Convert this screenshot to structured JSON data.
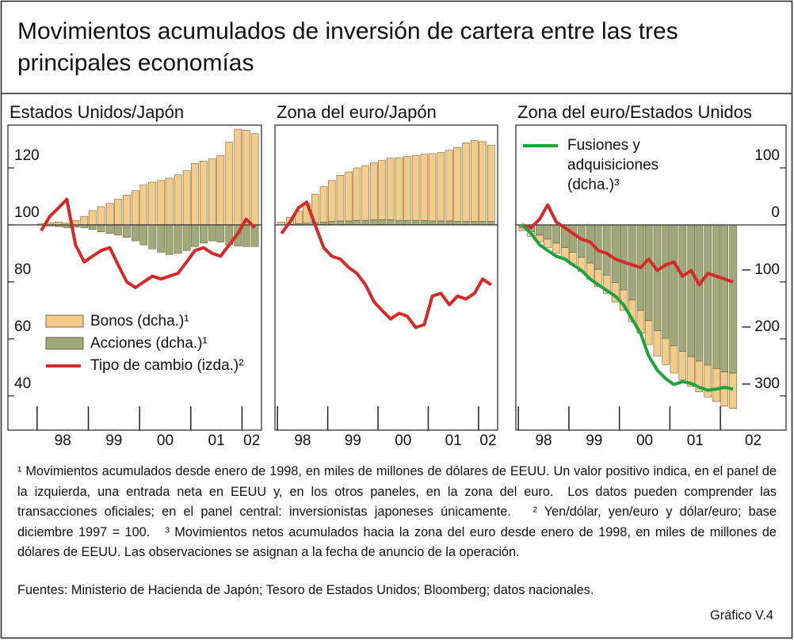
{
  "title": "Movimientos acumulados de inversión de cartera entre las tres principales economías",
  "chart_data": [
    {
      "type": "combo",
      "title": "Estados Unidos/Japón",
      "x": [
        1998.08,
        1998.25,
        1998.42,
        1998.58,
        1998.75,
        1998.92,
        1999.08,
        1999.25,
        1999.42,
        1999.58,
        1999.75,
        1999.92,
        2000.08,
        2000.25,
        2000.42,
        2000.58,
        2000.75,
        2000.92,
        2001.08,
        2001.25,
        2001.42,
        2001.58,
        2001.75,
        2001.92,
        2002.08,
        2002.25
      ],
      "xlim": [
        1997.43,
        2002.38
      ],
      "xticks": [
        {
          "value": 1998,
          "label": "98"
        },
        {
          "value": 1999,
          "label": "99"
        },
        {
          "value": 2000,
          "label": "00"
        },
        {
          "value": 2001,
          "label": "01"
        },
        {
          "value": 2002,
          "label": "02"
        }
      ],
      "ylim": [
        28,
        135
      ],
      "yticks": [
        40,
        60,
        80,
        100,
        120
      ],
      "y2lim": [
        -360,
        175
      ],
      "legend": "lower left",
      "series": [
        {
          "name": "Bonos (dcha.)¹",
          "type": "bar",
          "axis": "y2",
          "color": "#f4cc8a",
          "values": [
            2,
            4,
            5,
            3,
            8,
            15,
            25,
            32,
            38,
            45,
            52,
            60,
            70,
            75,
            78,
            82,
            88,
            95,
            108,
            112,
            116,
            122,
            145,
            168,
            166,
            160
          ]
        },
        {
          "name": "Acciones (dcha.)¹",
          "type": "bar",
          "axis": "y2",
          "color": "#a0aa78",
          "values": [
            0,
            -2,
            -3,
            -5,
            -4,
            -5,
            -8,
            -12,
            -15,
            -18,
            -22,
            -28,
            -35,
            -42,
            -48,
            -52,
            -50,
            -45,
            -38,
            -32,
            -28,
            -30,
            -35,
            -37,
            -38,
            -38
          ]
        },
        {
          "name": "Tipo de cambio (izda.)²",
          "type": "line",
          "color": "#d42a2a",
          "values": [
            98,
            103,
            106,
            109,
            93,
            87,
            89,
            91,
            92,
            86,
            80,
            78,
            80,
            82,
            81,
            82,
            83,
            87,
            91,
            92,
            90,
            89,
            93,
            97,
            102,
            99
          ]
        }
      ]
    },
    {
      "type": "combo",
      "title": "Zona del euro/Japón",
      "x": [
        1998.08,
        1998.25,
        1998.42,
        1998.58,
        1998.75,
        1998.92,
        1999.08,
        1999.25,
        1999.42,
        1999.58,
        1999.75,
        1999.92,
        2000.08,
        2000.25,
        2000.42,
        2000.58,
        2000.75,
        2000.92,
        2001.08,
        2001.25,
        2001.42,
        2001.58,
        2001.75,
        2001.92,
        2002.08,
        2002.25
      ],
      "xlim": [
        1997.95,
        2002.38
      ],
      "xticks": [
        {
          "value": 1998,
          "label": "98"
        },
        {
          "value": 1999,
          "label": "99"
        },
        {
          "value": 2000,
          "label": "00"
        },
        {
          "value": 2001,
          "label": "01"
        },
        {
          "value": 2002,
          "label": "02"
        }
      ],
      "ylim": [
        28,
        135
      ],
      "y2lim": [
        -360,
        175
      ],
      "series": [
        {
          "type": "bar",
          "axis": "y2",
          "color": "#f4cc8a",
          "values": [
            5,
            12,
            22,
            35,
            50,
            62,
            72,
            80,
            86,
            92,
            96,
            100,
            104,
            108,
            110,
            112,
            114,
            116,
            118,
            120,
            124,
            130,
            138,
            142,
            140,
            134
          ]
        },
        {
          "type": "bar",
          "axis": "y2",
          "color": "#a0aa78",
          "values": [
            0,
            1,
            2,
            3,
            4,
            5,
            6,
            7,
            7,
            8,
            8,
            9,
            9,
            9,
            8,
            8,
            8,
            8,
            7,
            7,
            7,
            6,
            6,
            6,
            6,
            6
          ]
        },
        {
          "type": "line",
          "color": "#d42a2a",
          "values": [
            97,
            101,
            106,
            108,
            100,
            92,
            89,
            88,
            85,
            83,
            79,
            73,
            70,
            67,
            69,
            68,
            64,
            65,
            75,
            76,
            72,
            75,
            74,
            76,
            81,
            79
          ]
        }
      ]
    },
    {
      "type": "combo",
      "title": "Zona del euro/Estados Unidos",
      "x": [
        1998.08,
        1998.25,
        1998.42,
        1998.58,
        1998.75,
        1998.92,
        1999.08,
        1999.25,
        1999.42,
        1999.58,
        1999.75,
        1999.92,
        2000.08,
        2000.25,
        2000.42,
        2000.58,
        2000.75,
        2000.92,
        2001.08,
        2001.25,
        2001.42,
        2001.58,
        2001.75,
        2001.92,
        2002.08,
        2002.25
      ],
      "xlim": [
        1997.95,
        2003.3
      ],
      "xticks": [
        {
          "value": 1998,
          "label": "98"
        },
        {
          "value": 1999,
          "label": "99"
        },
        {
          "value": 2000,
          "label": "00"
        },
        {
          "value": 2001,
          "label": "01"
        },
        {
          "value": 2002,
          "label": "02"
        }
      ],
      "ylim": [
        28,
        135
      ],
      "y2lim": [
        -360,
        175
      ],
      "y2ticks": [
        {
          "value": -300,
          "label": "– 300"
        },
        {
          "value": -200,
          "label": "– 200"
        },
        {
          "value": -100,
          "label": "– 100"
        },
        0,
        100
      ],
      "legend": "upper left",
      "series": [
        {
          "type": "bar",
          "axis": "y2",
          "color": "#f4cc8a",
          "values": [
            -5,
            -8,
            -12,
            -15,
            -18,
            -20,
            -22,
            -25,
            -28,
            -30,
            -32,
            -34,
            -36,
            -38,
            -40,
            -42,
            -44,
            -46,
            -48,
            -50,
            -52,
            -54,
            -56,
            -58,
            -60,
            -62
          ]
        },
        {
          "type": "bar",
          "axis": "y2",
          "color": "#a0aa78",
          "values": [
            -5,
            -12,
            -18,
            -25,
            -32,
            -40,
            -48,
            -57,
            -67,
            -78,
            -88,
            -101,
            -114,
            -132,
            -150,
            -168,
            -186,
            -199,
            -212,
            -222,
            -231,
            -239,
            -246,
            -252,
            -258,
            -260
          ]
        },
        {
          "type": "line",
          "color": "#d42a2a",
          "values": [
            100,
            99,
            102,
            107,
            101,
            99,
            97,
            95,
            94,
            91,
            90,
            88,
            87,
            86,
            85,
            88,
            84,
            86,
            87,
            82,
            84,
            79,
            83,
            82,
            81,
            80
          ]
        },
        {
          "name": "Fusiones y adquisiciones (dcha.)³",
          "type": "line",
          "axis": "y2",
          "color": "#1fa33a",
          "values": [
            0,
            -15,
            -35,
            -45,
            -55,
            -60,
            -70,
            -80,
            -95,
            -105,
            -115,
            -125,
            -140,
            -165,
            -190,
            -230,
            -255,
            -270,
            -280,
            -275,
            -278,
            -285,
            -290,
            -288,
            -285,
            -288
          ]
        }
      ]
    }
  ],
  "notes": "¹ Movimientos acumulados desde enero de 1998, en miles de millones de dólares de EEUU. Un valor positivo indica, en el panel de la izquierda, una entrada neta en EEUU y, en los otros paneles, en la zona del euro.  Los datos pueden comprender las transacciones oficiales; en el panel central: inversionistas japoneses únicamente.   ² Yen/dólar, yen/euro y dólar/euro; base diciembre 1997 = 100.   ³ Movimientos netos acumulados hacia la zona del euro desde enero de 1998, en miles de millones de dólares de EEUU. Las observaciones se asignan a la fecha de anuncio de la operación.",
  "source": "Fuentes: Ministerio de Hacienda de Japón; Tesoro de Estados Unidos; Bloomberg; datos nacionales.",
  "figure_label": "Gráfico V.4"
}
